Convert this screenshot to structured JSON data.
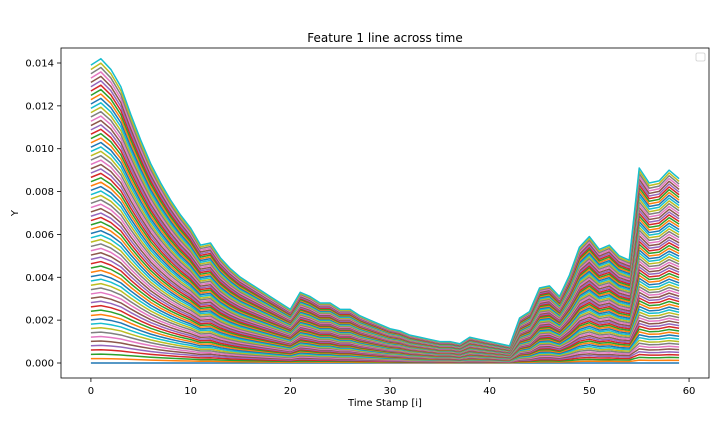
{
  "chart_data": {
    "type": "line",
    "title": "Feature 1 line across time",
    "xlabel": "Time Stamp [i]",
    "ylabel": "Y",
    "xlim": [
      -3,
      62
    ],
    "ylim": [
      -0.0007,
      0.0147
    ],
    "xticks": [
      0,
      10,
      20,
      30,
      40,
      50,
      60
    ],
    "yticks": [
      0.0,
      0.002,
      0.004,
      0.006,
      0.008,
      0.01,
      0.012,
      0.014
    ],
    "ytick_labels": [
      "0.000",
      "0.002",
      "0.004",
      "0.006",
      "0.008",
      "0.010",
      "0.012",
      "0.014"
    ],
    "grid": false,
    "legend": "top-right (empty)",
    "series_count": 70,
    "palette": [
      "#1f77b4",
      "#ff7f0e",
      "#2ca02c",
      "#d62728",
      "#9467bd",
      "#8c564b",
      "#e377c2",
      "#7f7f7f",
      "#bcbd22",
      "#17becf"
    ],
    "x": [
      0,
      1,
      2,
      3,
      4,
      5,
      6,
      7,
      8,
      9,
      10,
      11,
      12,
      13,
      14,
      15,
      16,
      17,
      18,
      19,
      20,
      21,
      22,
      23,
      24,
      25,
      26,
      27,
      28,
      29,
      30,
      31,
      32,
      33,
      34,
      35,
      36,
      37,
      38,
      39,
      40,
      41,
      42,
      43,
      44,
      45,
      46,
      47,
      48,
      49,
      50,
      51,
      52,
      53,
      54,
      55,
      56,
      57,
      58,
      59
    ],
    "upper_envelope": [
      0.0139,
      0.0142,
      0.0137,
      0.0129,
      0.0116,
      0.0104,
      0.0093,
      0.0084,
      0.0076,
      0.0069,
      0.0063,
      0.0055,
      0.0056,
      0.0049,
      0.0044,
      0.004,
      0.0037,
      0.0034,
      0.0031,
      0.0028,
      0.0025,
      0.0033,
      0.0031,
      0.0028,
      0.0028,
      0.0025,
      0.0025,
      0.0022,
      0.002,
      0.0018,
      0.0016,
      0.0015,
      0.0013,
      0.0012,
      0.0011,
      0.001,
      0.001,
      0.0009,
      0.0012,
      0.0011,
      0.001,
      0.0009,
      0.0008,
      0.0021,
      0.0024,
      0.0035,
      0.0036,
      0.0031,
      0.0041,
      0.0054,
      0.0059,
      0.0053,
      0.0055,
      0.005,
      0.0048,
      0.0091,
      0.0084,
      0.0085,
      0.009,
      0.0086
    ]
  }
}
